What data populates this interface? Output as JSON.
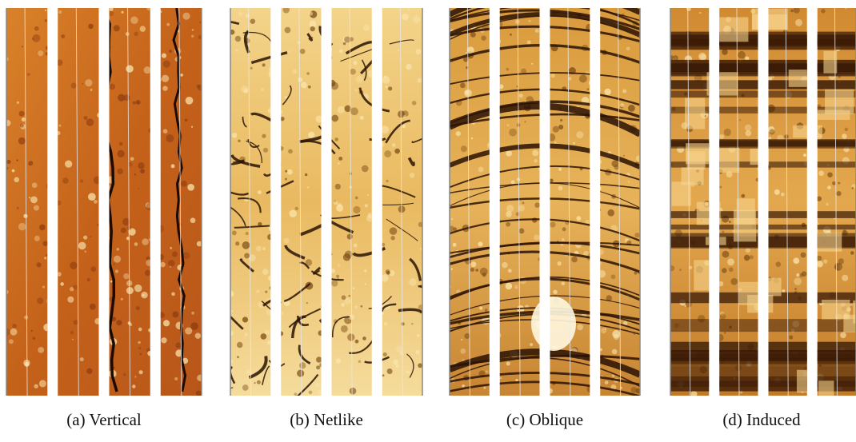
{
  "captions": [
    "(a) Vertical",
    "(b) Netlike",
    "(c) Oblique",
    "(d) Induced"
  ]
}
